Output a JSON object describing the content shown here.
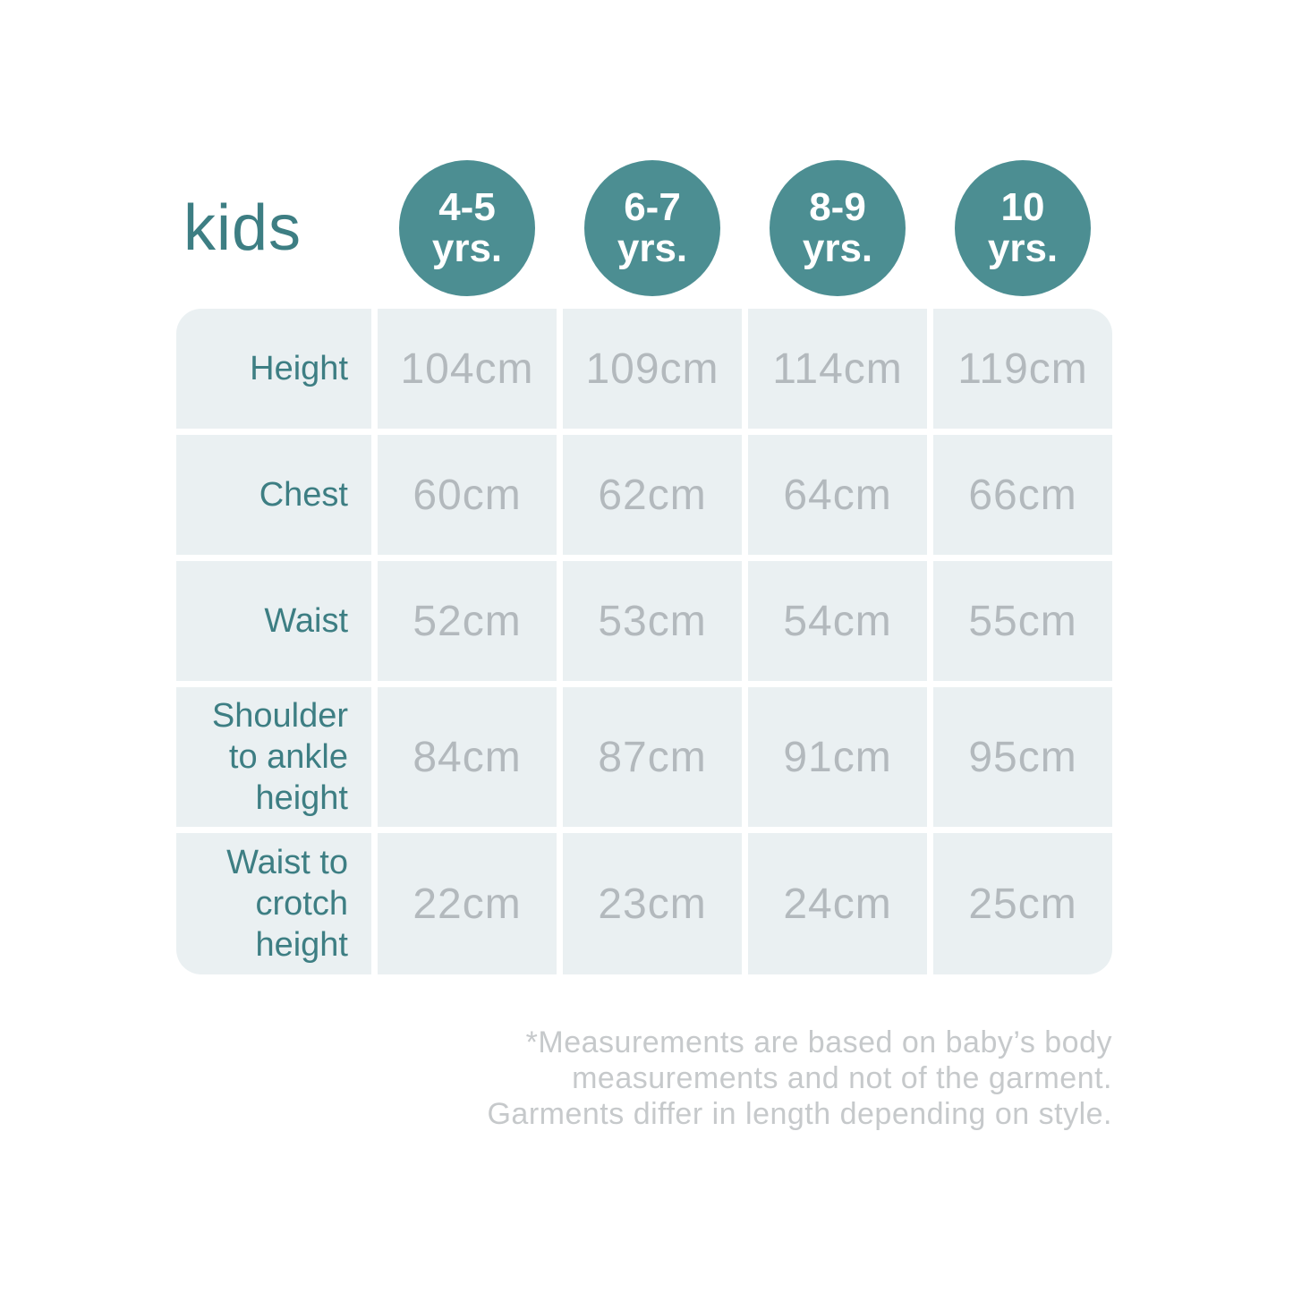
{
  "title": "kids",
  "colors": {
    "accent": "#4c8e92",
    "title": "#3d7e83",
    "label": "#3d7e83",
    "cell_bg": "#eaf0f2",
    "value": "#b3b9bd",
    "footer": "#c6c9cb",
    "circle_text": "#ffffff"
  },
  "age_groups": [
    {
      "line1": "4-5",
      "line2": "yrs."
    },
    {
      "line1": "6-7",
      "line2": "yrs."
    },
    {
      "line1": "8-9",
      "line2": "yrs."
    },
    {
      "line1": "10",
      "line2": "yrs."
    }
  ],
  "rows": [
    {
      "label": "Height",
      "values": [
        "104cm",
        "109cm",
        "114cm",
        "119cm"
      ]
    },
    {
      "label": "Chest",
      "values": [
        "60cm",
        "62cm",
        "64cm",
        "66cm"
      ]
    },
    {
      "label": "Waist",
      "values": [
        "52cm",
        "53cm",
        "54cm",
        "55cm"
      ]
    },
    {
      "label": "Shoulder to ankle height",
      "values": [
        "84cm",
        "87cm",
        "91cm",
        "95cm"
      ]
    },
    {
      "label": "Waist to crotch height",
      "values": [
        "22cm",
        "23cm",
        "24cm",
        "25cm"
      ]
    }
  ],
  "footer_lines": [
    "*Measurements are based on baby’s body",
    "measurements and not of the garment.",
    "Garments differ in length depending on style."
  ],
  "chart_data": {
    "type": "table",
    "title": "kids",
    "columns": [
      "4-5 yrs.",
      "6-7 yrs.",
      "8-9 yrs.",
      "10 yrs."
    ],
    "row_labels": [
      "Height",
      "Chest",
      "Waist",
      "Shoulder to ankle height",
      "Waist to crotch height"
    ],
    "values_cm": [
      [
        104,
        109,
        114,
        119
      ],
      [
        60,
        62,
        64,
        66
      ],
      [
        52,
        53,
        54,
        55
      ],
      [
        84,
        87,
        91,
        95
      ],
      [
        22,
        23,
        24,
        25
      ]
    ],
    "note": "*Measurements are based on baby’s body measurements and not of the garment. Garments differ in length depending on style."
  }
}
